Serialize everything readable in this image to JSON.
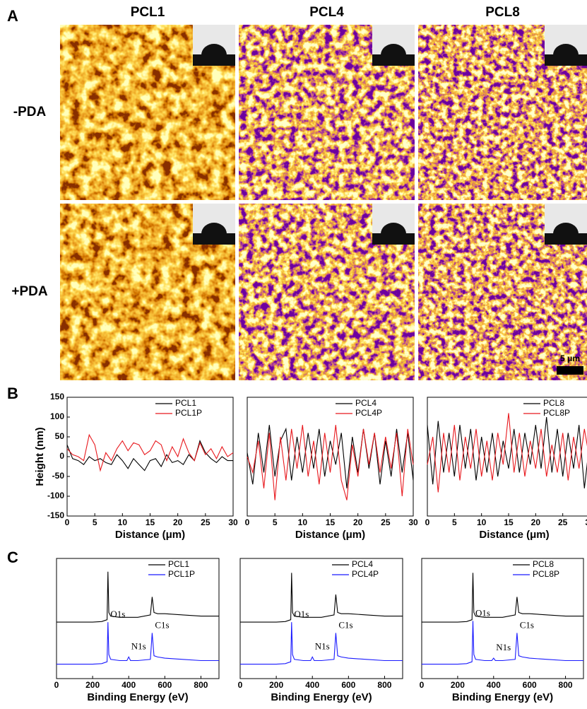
{
  "panel_labels": {
    "a": "A",
    "b": "B",
    "c": "C"
  },
  "panel_a": {
    "columns": [
      "PCL1",
      "PCL4",
      "PCL8"
    ],
    "rows": [
      "-PDA",
      "+PDA"
    ],
    "scale_bar": "5 μm"
  },
  "chart_data": [
    {
      "type": "line",
      "x_label": "Distance (μm)",
      "y_label": "Height (nm)",
      "xlim": [
        0,
        30
      ],
      "xticks": [
        0,
        5,
        10,
        15,
        20,
        25,
        30
      ],
      "ylim": [
        -150,
        150
      ],
      "yticks": [
        -150,
        -100,
        -50,
        0,
        50,
        100,
        150
      ],
      "x": [
        0,
        1,
        2,
        3,
        4,
        5,
        6,
        7,
        8,
        9,
        10,
        11,
        12,
        13,
        14,
        15,
        16,
        17,
        18,
        19,
        20,
        21,
        22,
        23,
        24,
        25,
        26,
        27,
        28,
        29,
        30
      ],
      "series": [
        {
          "name": "PCL1",
          "color": "#000000",
          "values": [
            30,
            -5,
            -10,
            -20,
            0,
            -10,
            -5,
            -15,
            -20,
            5,
            -10,
            -30,
            -5,
            -20,
            -35,
            -10,
            -5,
            -25,
            5,
            -15,
            -10,
            -20,
            5,
            -10,
            40,
            10,
            -5,
            -15,
            0,
            -10,
            -10
          ]
        },
        {
          "name": "PCL1P",
          "color": "#e8191e",
          "values": [
            20,
            5,
            0,
            -10,
            55,
            30,
            -35,
            10,
            -10,
            20,
            40,
            15,
            35,
            30,
            5,
            15,
            40,
            30,
            -10,
            25,
            0,
            45,
            10,
            -10,
            35,
            5,
            20,
            -5,
            25,
            0,
            10
          ]
        }
      ]
    },
    {
      "type": "line",
      "x_label": "Distance (μm)",
      "xlim": [
        0,
        30
      ],
      "xticks": [
        0,
        5,
        10,
        15,
        20,
        25,
        30
      ],
      "ylim": [
        -150,
        150
      ],
      "x": [
        0,
        1,
        2,
        3,
        4,
        5,
        6,
        7,
        8,
        9,
        10,
        11,
        12,
        13,
        14,
        15,
        16,
        17,
        18,
        19,
        20,
        21,
        22,
        23,
        24,
        25,
        26,
        27,
        28,
        29,
        30
      ],
      "series": [
        {
          "name": "PCL4",
          "color": "#000000",
          "values": [
            10,
            -70,
            60,
            -40,
            80,
            -50,
            40,
            70,
            -60,
            50,
            -40,
            60,
            -30,
            70,
            -50,
            40,
            -20,
            60,
            -80,
            50,
            -40,
            70,
            -30,
            60,
            -70,
            40,
            -50,
            70,
            -40,
            60,
            -60
          ]
        },
        {
          "name": "PCL4P",
          "color": "#e8191e",
          "values": [
            0,
            -40,
            40,
            -80,
            60,
            -110,
            50,
            -60,
            70,
            -30,
            80,
            -50,
            40,
            -70,
            60,
            -40,
            80,
            -60,
            -110,
            30,
            -50,
            70,
            -20,
            60,
            -40,
            50,
            -30,
            60,
            -100,
            70,
            -20
          ]
        }
      ]
    },
    {
      "type": "line",
      "x_label": "Distance (μm)",
      "xlim": [
        0,
        30
      ],
      "xticks": [
        0,
        5,
        10,
        15,
        20,
        25,
        30
      ],
      "ylim": [
        -150,
        150
      ],
      "x": [
        0,
        1,
        2,
        3,
        4,
        5,
        6,
        7,
        8,
        9,
        10,
        11,
        12,
        13,
        14,
        15,
        16,
        17,
        18,
        19,
        20,
        21,
        22,
        23,
        24,
        25,
        26,
        27,
        28,
        29,
        30
      ],
      "series": [
        {
          "name": "PCL8",
          "color": "#000000",
          "values": [
            80,
            -70,
            90,
            -40,
            60,
            -50,
            80,
            -30,
            70,
            -60,
            50,
            -40,
            60,
            -50,
            40,
            -30,
            70,
            -40,
            60,
            -20,
            80,
            -30,
            100,
            -40,
            70,
            -50,
            60,
            -30,
            80,
            -80,
            40
          ]
        },
        {
          "name": "PCL8P",
          "color": "#e8191e",
          "values": [
            -20,
            50,
            -90,
            60,
            -40,
            80,
            -60,
            50,
            -30,
            70,
            -50,
            40,
            -60,
            60,
            -20,
            110,
            -40,
            60,
            -50,
            40,
            -30,
            70,
            -50,
            30,
            -40,
            60,
            -60,
            50,
            -30,
            70,
            -10
          ]
        }
      ]
    },
    {
      "type": "line",
      "x_label": "Binding Energy (eV)",
      "xlim": [
        0,
        900
      ],
      "xticks": [
        0,
        200,
        400,
        600,
        800
      ],
      "ylim": [
        0,
        100
      ],
      "annotations": [
        "O1s",
        "N1s",
        "C1s"
      ],
      "x": [
        0,
        100,
        200,
        250,
        280,
        285,
        290,
        300,
        350,
        390,
        400,
        410,
        450,
        520,
        530,
        540,
        560,
        600,
        700,
        800,
        900
      ],
      "series": [
        {
          "name": "PCL1",
          "color": "#000000",
          "values": [
            47,
            47,
            47,
            47.5,
            49,
            89,
            55,
            52,
            51,
            51,
            51,
            51,
            51,
            53,
            68,
            55,
            54,
            54,
            53,
            52,
            52
          ]
        },
        {
          "name": "PCL1P",
          "color": "#1a1aff",
          "values": [
            12,
            12,
            12,
            12.5,
            14,
            47,
            20,
            16,
            15,
            15,
            18,
            15,
            15,
            16,
            38,
            19,
            18,
            17,
            16,
            15,
            15
          ]
        }
      ]
    },
    {
      "type": "line",
      "x_label": "Binding Energy (eV)",
      "xlim": [
        0,
        900
      ],
      "xticks": [
        0,
        200,
        400,
        600,
        800
      ],
      "ylim": [
        0,
        100
      ],
      "annotations": [
        "O1s",
        "N1s",
        "C1s"
      ],
      "x": [
        0,
        100,
        200,
        250,
        280,
        285,
        290,
        300,
        350,
        390,
        400,
        410,
        450,
        520,
        530,
        540,
        560,
        600,
        700,
        800,
        900
      ],
      "series": [
        {
          "name": "PCL4",
          "color": "#000000",
          "values": [
            47,
            47,
            47,
            47.5,
            49,
            88,
            55,
            52,
            51,
            51,
            51,
            51,
            51,
            53,
            70,
            55,
            54,
            54,
            53,
            52,
            52
          ]
        },
        {
          "name": "PCL4P",
          "color": "#1a1aff",
          "values": [
            12,
            12,
            12,
            12.5,
            14,
            47,
            20,
            16,
            15,
            15,
            18,
            15,
            15,
            16,
            38,
            19,
            18,
            17,
            16,
            15,
            15
          ]
        }
      ]
    },
    {
      "type": "line",
      "x_label": "Binding Energy (eV)",
      "xlim": [
        0,
        900
      ],
      "xticks": [
        0,
        200,
        400,
        600,
        800
      ],
      "ylim": [
        0,
        100
      ],
      "annotations": [
        "O1s",
        "N1s",
        "C1s"
      ],
      "x": [
        0,
        100,
        200,
        250,
        280,
        285,
        290,
        300,
        350,
        390,
        400,
        410,
        450,
        520,
        530,
        540,
        560,
        600,
        700,
        800,
        900
      ],
      "series": [
        {
          "name": "PCL8",
          "color": "#000000",
          "values": [
            47,
            47,
            47,
            47.5,
            49,
            88,
            55,
            52,
            51,
            51,
            51,
            51,
            51,
            53,
            68,
            55,
            54,
            54,
            53,
            52,
            52
          ]
        },
        {
          "name": "PCL8P",
          "color": "#1a1aff",
          "values": [
            12,
            12,
            12,
            12.5,
            14,
            48,
            20,
            16,
            15,
            15,
            17,
            15,
            15,
            16,
            38,
            19,
            18,
            17,
            16,
            15,
            15
          ]
        }
      ]
    }
  ]
}
